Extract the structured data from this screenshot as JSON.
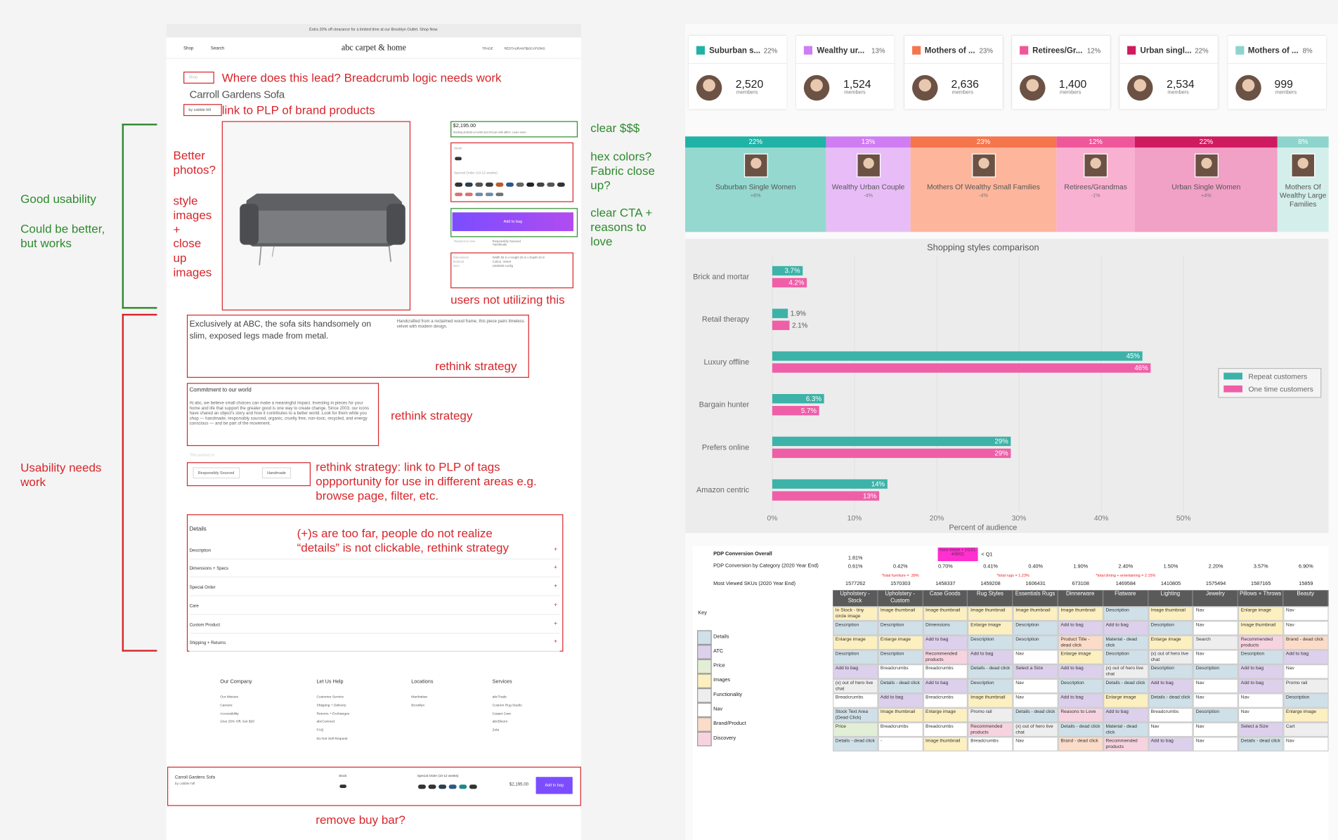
{
  "annotations_left": {
    "good": "Good usability",
    "better": "Could be better, but works",
    "needs_work": "Usability needs work"
  },
  "mockup": {
    "banner": "Extra 20% off clearance for a limited time at our Brooklyn Outlet. Shop Now.",
    "nav": {
      "shop": "Shop",
      "search": "Search",
      "logo": "abc carpet & home",
      "links": [
        "TRADE",
        "RESTAURANTS",
        "LOCATIONS"
      ]
    },
    "breadcrumb": "Shop",
    "product_title": "Carroll Gardens Sofa",
    "brand": "by cobble hill",
    "price": "$2,195.00",
    "price_note": "Starting at $183 a month and 0% per with affirm. Learn more",
    "stock": "Stock",
    "special_order": "Special Order (10-12 weeks)",
    "add_to_bag": "Add to bag",
    "reasons": "Reasons to love",
    "reason_items": "Responsibly Sourced Handmade",
    "specs": [
      [
        "Dimensions",
        "Width 82 in x Height 26 in x Depth 42 in"
      ],
      [
        "Material",
        "Cotton, Velvet"
      ],
      [
        "SKU",
        "1000000-config"
      ]
    ],
    "description": "Exclusively at ABC, the sofa sits handsomely on slim, exposed legs made from metal.",
    "description_right": "Handcrafted from a reclaimed wood frame, this piece pairs timeless velvet with modern design.",
    "commitment_title": "Commitment to our world",
    "commitment_text": "At abc, we believe small choices can make a meaningful impact. Investing in pieces for your home and life that support the greater good is one way to create change. Since 2003, our icons have shared an object's story and how it contributes to a better world. Look for them while you shop — handmade, responsibly sourced, organic, cruelty free, non-toxic, recycled, and energy conscious — and be part of the movement.",
    "product_is": "This product is",
    "tags": [
      "Responsibly Sourced",
      "Handmade"
    ],
    "details": [
      "Details",
      "Description",
      "Dimensions + Specs",
      "Special Order",
      "Care",
      "Custom Product",
      "Shipping + Returns"
    ],
    "plus": "+",
    "footer": [
      {
        "title": "Our Company",
        "links": [
          "Our Mission",
          "Careers",
          "Accessibility",
          "Give 25% Off, Get $20"
        ]
      },
      {
        "title": "Let Us Help",
        "links": [
          "Customer Service",
          "Shipping + Delivery",
          "Returns + Exchanges",
          "abcConnect",
          "FAQ",
          "Do Not Sell Request"
        ]
      },
      {
        "title": "Locations",
        "links": [
          "Manhattan",
          "Brooklyn"
        ]
      },
      {
        "title": "Services",
        "links": [
          "abcTrade",
          "Custom Rug Studio",
          "Carpet Care",
          "abcBloom",
          "Zola"
        ]
      }
    ],
    "buy_bar": {
      "title": "Carroll Gardens Sofa",
      "brand": "by cobble hill",
      "stock": "Stock",
      "special_order": "Special Order (10-12 weeks)",
      "price": "$2,195.00",
      "button": "Add to bag"
    }
  },
  "notes": [
    {
      "text": "Where does this lead? Breadcrumb logic needs work",
      "color": "#d7262b"
    },
    {
      "text": "link to PLP of brand products",
      "color": "#d7262b"
    },
    {
      "text": "Better photos?",
      "color": "#d7262b"
    },
    {
      "text": "style images + close up images",
      "color": "#d7262b"
    },
    {
      "text": "clear $$$",
      "color": "#2e8a2e"
    },
    {
      "text": "hex colors? Fabric close up?",
      "color": "#2e8a2e"
    },
    {
      "text": "clear CTA + reasons to love",
      "color": "#2e8a2e"
    },
    {
      "text": "users not utilizing this",
      "color": "#d7262b"
    },
    {
      "text": "rethink strategy",
      "color": "#d7262b"
    },
    {
      "text": "rethink strategy",
      "color": "#d7262b"
    },
    {
      "text": "rethink strategy: link to PLP of tags oppportunity for use in different areas e.g. browse page, filter, etc.",
      "color": "#d7262b"
    },
    {
      "text": "(+)s are too far, people do not realize “details” is not clickable, rethink strategy",
      "color": "#d7262b"
    },
    {
      "text": "remove buy bar?",
      "color": "#d7262b"
    }
  ],
  "personas": {
    "members_label": "members",
    "cards": [
      {
        "name": "Suburban s...",
        "share": "22%",
        "members": "2,520",
        "color": "#1fb3a5"
      },
      {
        "name": "Wealthy ur...",
        "share": "13%",
        "members": "1,524",
        "color": "#d07cf2"
      },
      {
        "name": "Mothers of ...",
        "share": "23%",
        "members": "2,636",
        "color": "#f5754d"
      },
      {
        "name": "Retirees/Gr...",
        "share": "12%",
        "members": "1,400",
        "color": "#f0579a"
      },
      {
        "name": "Urban singl...",
        "share": "22%",
        "members": "2,534",
        "color": "#cf1a5f"
      },
      {
        "name": "Mothers of ...",
        "share": "8%",
        "members": "999",
        "color": "#8dd4cc"
      }
    ],
    "segments": [
      {
        "share": "22%",
        "name": "Suburban Single Women",
        "change": "+6%",
        "color": "#94d8cf"
      },
      {
        "share": "13%",
        "name": "Wealthy Urban Couple",
        "change": "-4%",
        "color": "#e8bdf7"
      },
      {
        "share": "23%",
        "name": "Mothers Of Wealthy Small Families",
        "change": "-4%",
        "color": "#fdb69c"
      },
      {
        "share": "12%",
        "name": "Retirees/Grandmas",
        "change": "-1%",
        "color": "#f9b1d1"
      },
      {
        "share": "22%",
        "name": "Urban Single Women",
        "change": "+4%",
        "color": "#f1a0c6"
      },
      {
        "share": "8%",
        "name": "Mothers Of Wealthy Large Families",
        "color": "#d4efeb"
      }
    ]
  },
  "chart_data": {
    "type": "bar",
    "orientation": "horizontal",
    "title": "Shopping styles comparison",
    "xlabel": "Percent of audience",
    "categories": [
      "Brick and mortar",
      "Retail therapy",
      "Luxury offline",
      "Bargain hunter",
      "Prefers online",
      "Amazon centric"
    ],
    "series": [
      {
        "name": "Repeat customers",
        "color": "#3db2a8",
        "values": [
          3.7,
          1.9,
          45,
          6.3,
          29,
          14
        ],
        "value_labels": [
          "3.7%",
          "1.9%",
          "45%",
          "6.3%",
          "29%",
          "14%"
        ]
      },
      {
        "name": "One time customers",
        "color": "#ee5fa8",
        "values": [
          4.2,
          2.1,
          46,
          5.7,
          29,
          13
        ],
        "value_labels": [
          "4.2%",
          "2.1%",
          "46%",
          "5.7%",
          "29%",
          "13%"
        ]
      }
    ],
    "xlim": [
      0,
      50
    ],
    "xticks": [
      {
        "value": 0,
        "label": "0%"
      },
      {
        "value": 10,
        "label": "10%"
      },
      {
        "value": 20,
        "label": "20%"
      },
      {
        "value": 30,
        "label": "30%"
      },
      {
        "value": 40,
        "label": "40%"
      },
      {
        "value": 50,
        "label": "50%"
      }
    ],
    "grid": true,
    "legend": "right"
  },
  "table": {
    "overall_label": "PDP Conversion Overall",
    "overall_value": "1.81%",
    "flag": "Voice freeze + 1/1/21-4/30/21",
    "flag_note": "< Q1",
    "category_label": "PDP Conversion by Category (2020 Year End)",
    "category_values": [
      "0.61%",
      "0.42%",
      "0.70%",
      "0.41%",
      "0.40%",
      "1.90%",
      "2.40%",
      "1.50%",
      "2.20%",
      "3.57%",
      "6.90%"
    ],
    "totals": [
      "*total furniture = .39%",
      "*total rugs = 1.23%",
      "*total dining + entertaining = 2.15%"
    ],
    "skus_label": "Most Viewed SKUs (2020 Year End)",
    "skus": [
      "1577262",
      "1570303",
      "1458337",
      "1459208",
      "1606431",
      "673108",
      "1469584",
      "1410805",
      "1575494",
      "1587165",
      "15859"
    ],
    "key_label": "Key",
    "key": [
      {
        "label": "Details",
        "color": "#cfe0e8"
      },
      {
        "label": "ATC",
        "color": "#ddd0ec"
      },
      {
        "label": "Price",
        "color": "#e2efd6"
      },
      {
        "label": "Images",
        "color": "#fcefc0"
      },
      {
        "label": "Functionality",
        "color": "#eeeeee"
      },
      {
        "label": "Nav",
        "color": "#ffffff"
      },
      {
        "label": "Brand/Product",
        "color": "#fbdcc8"
      },
      {
        "label": "Discovery",
        "color": "#f7d3e0"
      }
    ],
    "columns": [
      {
        "name": "Upholstery - Stock",
        "cells": [
          "In Stock - tiny circle image",
          "Description",
          "Enlarge image",
          "Description",
          "Add to bag",
          "(x) out of hero live chat",
          "Breadcrumbs",
          "Stock Text Area (Dead Click)",
          "Price",
          "Details - dead click"
        ],
        "colors": [
          "#fcefc0",
          "#cfe0e8",
          "#fcefc0",
          "#cfe0e8",
          "#ddd0ec",
          "#eeeeee",
          "#ffffff",
          "#cfe0e8",
          "#e2efd6",
          "#cfe0e8"
        ]
      },
      {
        "name": "Upholstery - Custom",
        "cells": [
          "Image thumbnail",
          "Description",
          "Enlarge image",
          "Description",
          "Breadcrumbs",
          "Details - dead click",
          "Add to bag",
          "Image thumbnail",
          "Breadcrumbs",
          "-"
        ],
        "colors": [
          "#fcefc0",
          "#cfe0e8",
          "#fcefc0",
          "#cfe0e8",
          "#ffffff",
          "#cfe0e8",
          "#ddd0ec",
          "#fcefc0",
          "#ffffff",
          "#ffffff"
        ]
      },
      {
        "name": "Case Goods",
        "cells": [
          "Image thumbnail",
          "Dimensions",
          "Add to bag",
          "Recommended products",
          "Breadcrumbs",
          "Add to bag",
          "Breadcrumbs",
          "Enlarge image",
          "Breadcrumbs",
          "Image thumbnail"
        ],
        "colors": [
          "#fcefc0",
          "#cfe0e8",
          "#ddd0ec",
          "#f7d3e0",
          "#ffffff",
          "#ddd0ec",
          "#ffffff",
          "#fcefc0",
          "#ffffff",
          "#fcefc0"
        ]
      },
      {
        "name": "Rug Styles",
        "cells": [
          "Image thumbnail",
          "Enlarge image",
          "Description",
          "Add to bag",
          "Details - dead click",
          "Description",
          "Image thumbnail",
          "Promo rail",
          "Recommended products",
          "Breadcrumbs"
        ],
        "colors": [
          "#fcefc0",
          "#fcefc0",
          "#cfe0e8",
          "#ddd0ec",
          "#cfe0e8",
          "#cfe0e8",
          "#fcefc0",
          "#eeeeee",
          "#f7d3e0",
          "#ffffff"
        ]
      },
      {
        "name": "Essentials Rugs",
        "cells": [
          "Image thumbnail",
          "Description",
          "Description",
          "Nav",
          "Select a Size",
          "Nav",
          "Nav",
          "Details - dead click",
          "(x) out of hero live chat",
          "Nav"
        ],
        "colors": [
          "#fcefc0",
          "#cfe0e8",
          "#cfe0e8",
          "#ffffff",
          "#ddd0ec",
          "#ffffff",
          "#ffffff",
          "#cfe0e8",
          "#eeeeee",
          "#ffffff"
        ]
      },
      {
        "name": "Dinnerware",
        "cells": [
          "Image thumbnail",
          "Add to bag",
          "Product Title - dead click",
          "Enlarge image",
          "Add to bag",
          "Description",
          "Add to bag",
          "Reasons to Love",
          "Details - dead click",
          "Brand - dead click"
        ],
        "colors": [
          "#fcefc0",
          "#ddd0ec",
          "#fbdcc8",
          "#fcefc0",
          "#ddd0ec",
          "#cfe0e8",
          "#ddd0ec",
          "#f7d3e0",
          "#cfe0e8",
          "#fbdcc8"
        ]
      },
      {
        "name": "Flatware",
        "cells": [
          "Description",
          "Add to bag",
          "Material - dead click",
          "Description",
          "(x) out of hero live chat",
          "Details - dead click",
          "Enlarge image",
          "Add to bag",
          "Material - dead click",
          "Recommended products"
        ],
        "colors": [
          "#cfe0e8",
          "#ddd0ec",
          "#cfe0e8",
          "#cfe0e8",
          "#eeeeee",
          "#cfe0e8",
          "#fcefc0",
          "#ddd0ec",
          "#cfe0e8",
          "#f7d3e0"
        ]
      },
      {
        "name": "Lighting",
        "cells": [
          "Image thumbnail",
          "Description",
          "Enlarge image",
          "(x) out of hero live chat",
          "Description",
          "Add to bag",
          "Details - dead click",
          "Breadcrumbs",
          "Nav",
          "Add to bag"
        ],
        "colors": [
          "#fcefc0",
          "#cfe0e8",
          "#fcefc0",
          "#eeeeee",
          "#cfe0e8",
          "#ddd0ec",
          "#cfe0e8",
          "#ffffff",
          "#ffffff",
          "#ddd0ec"
        ]
      },
      {
        "name": "Jewelry",
        "cells": [
          "Nav",
          "Nav",
          "Search",
          "Nav",
          "Description",
          "Nav",
          "Nav",
          "Description",
          "Nav",
          "Nav"
        ],
        "colors": [
          "#ffffff",
          "#ffffff",
          "#eeeeee",
          "#ffffff",
          "#cfe0e8",
          "#ffffff",
          "#ffffff",
          "#cfe0e8",
          "#ffffff",
          "#ffffff"
        ]
      },
      {
        "name": "Pillows + Throws",
        "cells": [
          "Enlarge image",
          "Image thumbnail",
          "Recommended products",
          "Description",
          "Add to bag",
          "Add to bag",
          "Nav",
          "Nav",
          "Select a Size",
          "Details - dead click"
        ],
        "colors": [
          "#fcefc0",
          "#fcefc0",
          "#f7d3e0",
          "#cfe0e8",
          "#ddd0ec",
          "#ddd0ec",
          "#ffffff",
          "#ffffff",
          "#ddd0ec",
          "#cfe0e8"
        ]
      },
      {
        "name": "Beauty",
        "cells": [
          "Nav",
          "Nav",
          "Brand - dead click",
          "Add to bag",
          "Nav",
          "Promo rail",
          "Description",
          "Enlarge image",
          "Cart",
          "Nav"
        ],
        "colors": [
          "#ffffff",
          "#ffffff",
          "#fbdcc8",
          "#ddd0ec",
          "#ffffff",
          "#eeeeee",
          "#cfe0e8",
          "#fcefc0",
          "#eeeeee",
          "#ffffff"
        ]
      }
    ]
  }
}
